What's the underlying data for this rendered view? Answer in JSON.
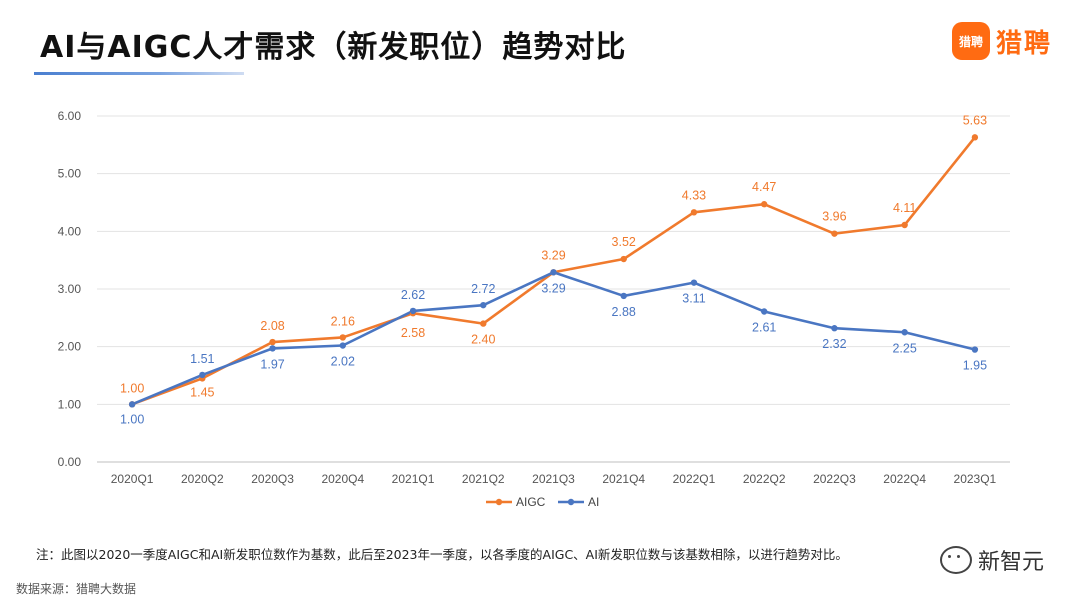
{
  "header": {
    "title": "AI与AIGC人才需求（新发职位）趋势对比",
    "logo_icon_text": "猎聘",
    "logo_text": "猎聘",
    "brand_color": "#ff6b12"
  },
  "chart_data": {
    "type": "line",
    "title": "",
    "xlabel": "",
    "ylabel": "",
    "categories": [
      "2020Q1",
      "2020Q2",
      "2020Q3",
      "2020Q4",
      "2021Q1",
      "2021Q2",
      "2021Q3",
      "2021Q4",
      "2022Q1",
      "2022Q2",
      "2022Q3",
      "2022Q4",
      "2023Q1"
    ],
    "ylim": [
      0,
      6
    ],
    "yticks": [
      "0.00",
      "1.00",
      "2.00",
      "3.00",
      "4.00",
      "5.00",
      "6.00"
    ],
    "grid": true,
    "legend_position": "bottom",
    "series": [
      {
        "name": "AIGC",
        "color": "#f07a2d",
        "values": [
          1.0,
          1.45,
          2.08,
          2.16,
          2.58,
          2.4,
          3.29,
          3.52,
          4.33,
          4.47,
          3.96,
          4.11,
          5.63
        ],
        "labels": [
          "1.00",
          "1.45",
          "2.08",
          "2.16",
          "2.58",
          "2.40",
          "3.29",
          "3.52",
          "4.33",
          "4.47",
          "3.96",
          "4.11",
          "5.63"
        ]
      },
      {
        "name": "AI",
        "color": "#4a76c2",
        "values": [
          1.0,
          1.51,
          1.97,
          2.02,
          2.62,
          2.72,
          3.29,
          2.88,
          3.11,
          2.61,
          2.32,
          2.25,
          1.95
        ],
        "labels": [
          "1.00",
          "1.51",
          "1.97",
          "2.02",
          "2.62",
          "2.72",
          "3.29",
          "2.88",
          "3.11",
          "2.61",
          "2.32",
          "2.25",
          "1.95"
        ]
      }
    ]
  },
  "footer": {
    "note": "注：此图以2020一季度AIGC和AI新发职位数作为基数，此后至2023年一季度，以各季度的AIGC、AI新发职位数与该基数相除，以进行趋势对比。",
    "source": "数据来源：猎聘大数据",
    "watermark": "新智元"
  }
}
